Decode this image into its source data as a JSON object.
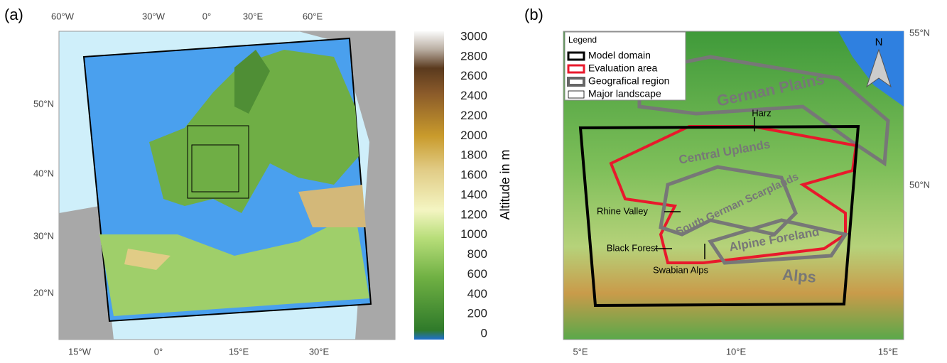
{
  "panel_a": {
    "label": "(a)",
    "lon_top": [
      "60°W",
      "30°W",
      "0°",
      "30°E",
      "60°E"
    ],
    "lon_bottom": [
      "15°W",
      "0°",
      "15°E",
      "30°E"
    ],
    "lat_left": [
      "50°N",
      "40°N",
      "30°N",
      "20°N"
    ],
    "colorbar": {
      "ticks": [
        3000,
        2800,
        2600,
        2400,
        2200,
        2000,
        1800,
        1600,
        1400,
        1200,
        1000,
        800,
        600,
        400,
        200,
        0
      ],
      "label": "Altitude in m"
    }
  },
  "panel_b": {
    "label": "(b)",
    "lat_right": [
      "55°N",
      "50°N"
    ],
    "lon_bottom": [
      "5°E",
      "10°E",
      "15°E"
    ],
    "north": "N",
    "legend": {
      "title": "Legend",
      "items": [
        "Model domain",
        "Evaluation area",
        "Geografical region",
        "Major landscape"
      ]
    },
    "regions": [
      "German Plains",
      "Central Uplands",
      "South German Scarplands",
      "Alpine Foreland",
      "Alps"
    ],
    "places": [
      "Harz",
      "Rhine Valley",
      "Black Forest",
      "Swabian Alps"
    ]
  }
}
